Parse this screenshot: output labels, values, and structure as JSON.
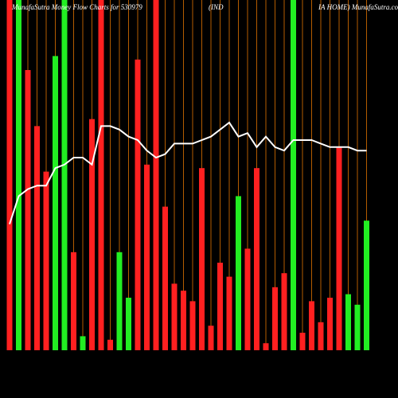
{
  "chart_data": {
    "type": "bar",
    "title": [
      "MunafaSutra  Money Flow  Charts for 530979",
      "(IND",
      "IA HOME) MunafaSutra.com"
    ],
    "ylim": [
      0,
      100
    ],
    "values": [
      100,
      100,
      80,
      64,
      51,
      84,
      100,
      28,
      4,
      66,
      100,
      3,
      28,
      15,
      83,
      53,
      100,
      41,
      19,
      17,
      14,
      52,
      7,
      25,
      21,
      44,
      29,
      52,
      2,
      18,
      22,
      100,
      5,
      14,
      8,
      15,
      58,
      16,
      13,
      37
    ],
    "colors": [
      "#ff2020",
      "#22ee22",
      "#ff2020",
      "#ff2020",
      "#ff2020",
      "#22ee22",
      "#22ee22",
      "#ff2020",
      "#22ee22",
      "#ff2020",
      "#ff2020",
      "#ff2020",
      "#22ee22",
      "#22ee22",
      "#ff2020",
      "#ff2020",
      "#ff2020",
      "#ff2020",
      "#ff2020",
      "#ff2020",
      "#ff2020",
      "#ff2020",
      "#ff2020",
      "#ff2020",
      "#ff2020",
      "#22ee22",
      "#ff2020",
      "#ff2020",
      "#ff2020",
      "#ff2020",
      "#ff2020",
      "#22ee22",
      "#ff2020",
      "#ff2020",
      "#ff2020",
      "#ff2020",
      "#ff2020",
      "#22ee22",
      "#22ee22",
      "#22ee22"
    ],
    "line": {
      "color": "#ffffff",
      "values": [
        36,
        44,
        46,
        47,
        47,
        52,
        53,
        55,
        55,
        53,
        64,
        64,
        63,
        61,
        60,
        57,
        55,
        56,
        59,
        59,
        59,
        60,
        61,
        63,
        65,
        61,
        62,
        58,
        61,
        58,
        57,
        60,
        60,
        60,
        59,
        58,
        58,
        58,
        57,
        57
      ]
    },
    "gridline_color": "#b35c00"
  }
}
